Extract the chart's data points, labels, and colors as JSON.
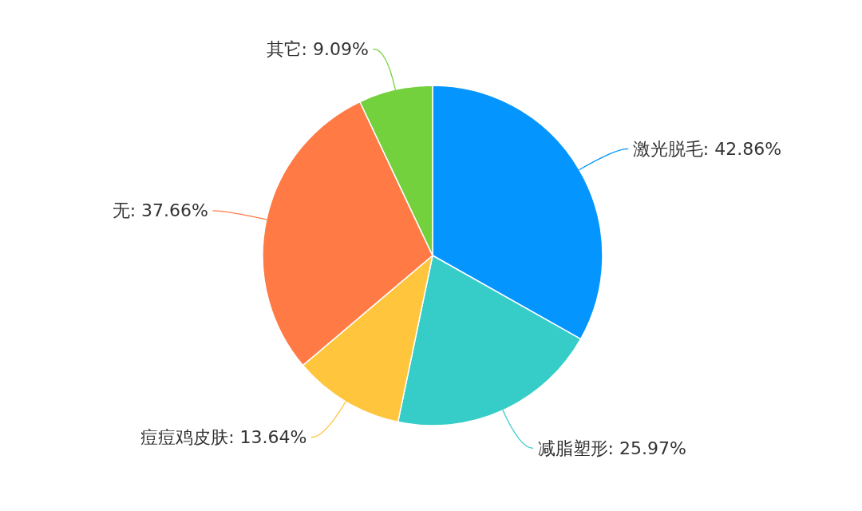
{
  "chart_data": {
    "type": "pie",
    "categories": [
      "激光脱毛",
      "减脂塑形",
      "痘痘鸡皮肤",
      "无",
      "其它"
    ],
    "values": [
      42.86,
      25.97,
      13.64,
      37.66,
      9.09
    ],
    "value_labels": [
      "42.86%",
      "25.97%",
      "13.64%",
      "37.66%",
      "9.09%"
    ],
    "colors": [
      "#0595ff",
      "#36cdc8",
      "#ffc53d",
      "#ff7a45",
      "#73d13d"
    ]
  }
}
